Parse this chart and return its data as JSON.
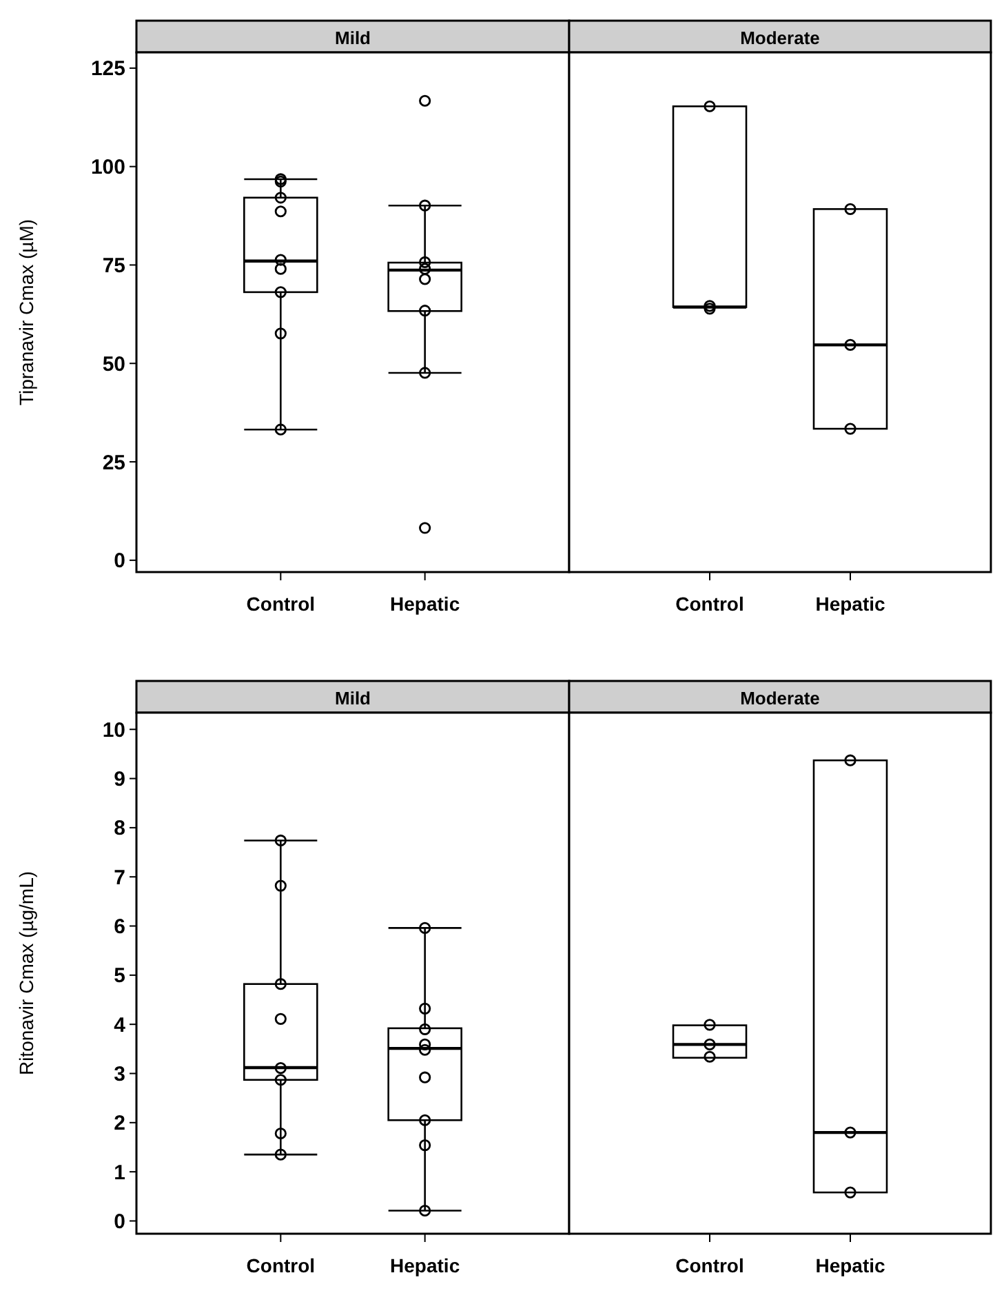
{
  "chart_data": [
    {
      "type": "box",
      "title": "Mild",
      "ylabel": "Tipranavir Cmax (µM)",
      "categories": [
        "Control",
        "Hepatic"
      ],
      "ylim": [
        -3,
        129
      ],
      "yticks": [
        0,
        25,
        50,
        75,
        100,
        125
      ],
      "boxes": [
        {
          "low": 33.2,
          "q1": 68.1,
          "median": 76,
          "q3": 92.1,
          "high": 96.8
        },
        {
          "low": 47.6,
          "q1": 63.3,
          "median": 73.7,
          "q3": 75.6,
          "high": 90.1
        }
      ],
      "series": [
        {
          "type": "scatter",
          "color": "#000000",
          "marker": "circle",
          "x": [
            "Control",
            "Control",
            "Control",
            "Control",
            "Control",
            "Control",
            "Control",
            "Control",
            "Control",
            "Hepatic",
            "Hepatic",
            "Hepatic",
            "Hepatic",
            "Hepatic",
            "Hepatic",
            "Hepatic",
            "Hepatic"
          ],
          "values": [
            96.8,
            96.2,
            92.1,
            88.6,
            76.3,
            74,
            68.1,
            57.6,
            33.2,
            116.7,
            90.1,
            75.7,
            74,
            71.4,
            63.4,
            47.6,
            8.2
          ]
        }
      ]
    },
    {
      "type": "box",
      "title": "Moderate",
      "categories": [
        "Control",
        "Hepatic"
      ],
      "ylim": [
        -3,
        129
      ],
      "yticks": [
        0,
        25,
        50,
        75,
        100,
        125
      ],
      "tick_labels": "x",
      "boxes": [
        {
          "low": 64.3,
          "q1": 64.3,
          "median": 64.3,
          "q3": 115.3,
          "high": 115.3
        },
        {
          "low": 33.4,
          "q1": 33.4,
          "median": 54.7,
          "q3": 89.2,
          "high": 89.2
        }
      ],
      "series": [
        {
          "type": "scatter",
          "color": "#000000",
          "marker": "circle",
          "x": [
            "Control",
            "Control",
            "Control",
            "Hepatic",
            "Hepatic",
            "Hepatic"
          ],
          "values": [
            115.3,
            64.6,
            63.9,
            89.2,
            54.7,
            33.4
          ]
        }
      ]
    },
    {
      "type": "box",
      "title": "Mild",
      "ylabel": "Ritonavir Cmax (µg/mL)",
      "categories": [
        "Control",
        "Hepatic"
      ],
      "ylim": [
        -0.26,
        10.34
      ],
      "yticks": [
        0,
        1,
        2,
        3,
        4,
        5,
        6,
        7,
        8,
        9,
        10
      ],
      "boxes": [
        {
          "low": 1.35,
          "q1": 2.87,
          "median": 3.12,
          "q3": 4.82,
          "high": 7.74
        },
        {
          "low": 0.21,
          "q1": 2.05,
          "median": 3.51,
          "q3": 3.92,
          "high": 5.96
        }
      ],
      "series": [
        {
          "type": "scatter",
          "color": "#000000",
          "marker": "circle",
          "x": [
            "Control",
            "Control",
            "Control",
            "Control",
            "Control",
            "Control",
            "Control",
            "Control",
            "Hepatic",
            "Hepatic",
            "Hepatic",
            "Hepatic",
            "Hepatic",
            "Hepatic",
            "Hepatic",
            "Hepatic",
            "Hepatic"
          ],
          "values": [
            7.74,
            6.82,
            4.82,
            4.11,
            3.11,
            2.87,
            1.78,
            1.35,
            5.96,
            4.32,
            3.9,
            3.59,
            3.48,
            2.92,
            2.05,
            1.54,
            0.21
          ]
        }
      ]
    },
    {
      "type": "box",
      "title": "Moderate",
      "categories": [
        "Control",
        "Hepatic"
      ],
      "ylim": [
        -0.26,
        10.34
      ],
      "yticks": [
        0,
        1,
        2,
        3,
        4,
        5,
        6,
        7,
        8,
        9,
        10
      ],
      "tick_labels": "x",
      "boxes": [
        {
          "low": 3.32,
          "q1": 3.32,
          "median": 3.59,
          "q3": 3.98,
          "high": 3.98
        },
        {
          "low": 0.58,
          "q1": 0.58,
          "median": 1.8,
          "q3": 9.37,
          "high": 9.37
        }
      ],
      "series": [
        {
          "type": "scatter",
          "color": "#000000",
          "marker": "circle",
          "x": [
            "Control",
            "Control",
            "Control",
            "Hepatic",
            "Hepatic",
            "Hepatic"
          ],
          "values": [
            3.99,
            3.59,
            3.34,
            9.37,
            1.8,
            0.58
          ]
        }
      ]
    }
  ]
}
